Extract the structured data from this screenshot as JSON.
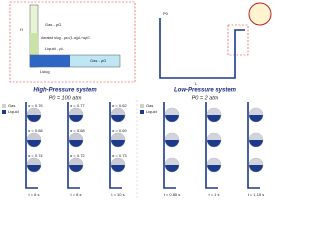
{
  "schematic": {
    "gas_top": "Gas - ρG",
    "slug": "Aerated slug - ρs=(1-α)ρL+αρG",
    "liquid": "Liquid - ρL",
    "gas_right": "Gas - ρG",
    "slug_length": "Lslug",
    "p0": "P0",
    "length": "L",
    "height": "H"
  },
  "high_pressure": {
    "title": "High-Pressure system",
    "pressure": "P0 = 100 atm",
    "legend": [
      "Gas",
      "Liquid"
    ],
    "frames": [
      {
        "time": "t = 6 s",
        "alphas": [
          "α = 0.76",
          "α = 0.68",
          "α = 0.74"
        ]
      },
      {
        "time": "t = 8 s",
        "alphas": [
          "α = 0.77",
          "α = 0.68",
          "α = 0.72"
        ]
      },
      {
        "time": "t = 10 s",
        "alphas": [
          "α = 0.62",
          "α = 0.69",
          "α = 0.73"
        ]
      }
    ]
  },
  "low_pressure": {
    "title": "Low-Pressure system",
    "pressure": "P0 = 2 atm",
    "legend": [
      "Gas",
      "Liquid"
    ],
    "frames": [
      {
        "time": "t = 0.85 s"
      },
      {
        "time": "t = 1 s"
      },
      {
        "time": "t = 1.15 s"
      }
    ]
  }
}
